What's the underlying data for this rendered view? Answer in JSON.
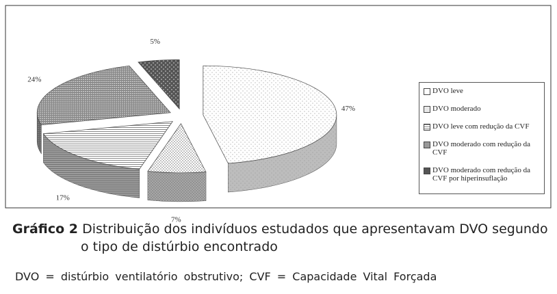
{
  "chart_data": {
    "type": "pie3d",
    "categories": [
      "DVO leve",
      "DVO moderado",
      "DVO leve com redução da CVF",
      "DVO moderado com redução da CVF",
      "DVO moderado com redução da CVF por hiperinsuflação"
    ],
    "values": [
      47,
      7,
      17,
      24,
      5
    ],
    "value_labels": [
      "47%",
      "7%",
      "17%",
      "24%",
      "5%"
    ],
    "legend": "right"
  },
  "caption": {
    "label": "Gráfico 2",
    "text": "Distribuição dos indivíduos estudados que apresentavam DVO segundo o tipo de distúrbio encontrado"
  },
  "footnote": "DVO = distúrbio ventilatório obstrutivo; CVF = Capacidade Vital Forçada"
}
